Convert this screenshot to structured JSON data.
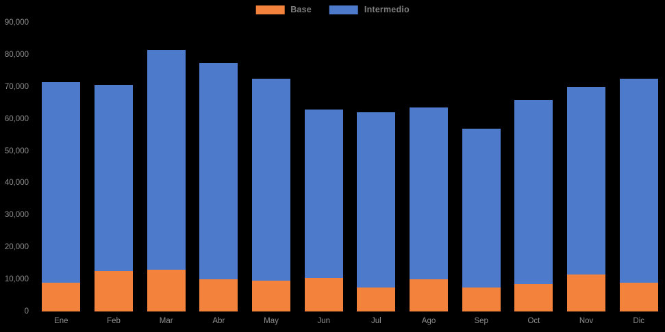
{
  "colors": {
    "background": "#000000",
    "base_series": "#F2823C",
    "intermedio_series": "#4D7ACB",
    "axis_label_text": "#8F8F8F",
    "legend_text": "#7D7D7D"
  },
  "legend": {
    "items": [
      {
        "label": "Base",
        "color": "#F2823C"
      },
      {
        "label": "Intermedio",
        "color": "#4D7ACB"
      }
    ]
  },
  "chart_data": {
    "type": "bar",
    "stacked": true,
    "title": "",
    "xlabel": "",
    "ylabel": "",
    "categories": [
      "Ene",
      "Feb",
      "Mar",
      "Abr",
      "May",
      "Jun",
      "Jul",
      "Ago",
      "Sep",
      "Oct",
      "Nov",
      "Dic"
    ],
    "series": [
      {
        "name": "Base",
        "color": "#F2823C",
        "values": [
          9000,
          12500,
          13000,
          10000,
          9500,
          10500,
          7500,
          10000,
          7500,
          8500,
          11500,
          9000
        ]
      },
      {
        "name": "Intermedio",
        "color": "#4D7ACB",
        "values": [
          62500,
          58000,
          68500,
          67500,
          63000,
          52500,
          54500,
          53500,
          49500,
          57500,
          58500,
          63500
        ]
      }
    ],
    "stack_totals": [
      71500,
      70500,
      81500,
      77500,
      72500,
      63000,
      62000,
      63500,
      57000,
      66000,
      70000,
      72500
    ],
    "ylim": [
      0,
      90000
    ],
    "ytick_interval": 10000,
    "ytick_labels": [
      "0",
      "10,000",
      "20,000",
      "30,000",
      "40,000",
      "50,000",
      "60,000",
      "70,000",
      "80,000",
      "90,000"
    ],
    "grid": false,
    "legend_position": "top-center"
  }
}
